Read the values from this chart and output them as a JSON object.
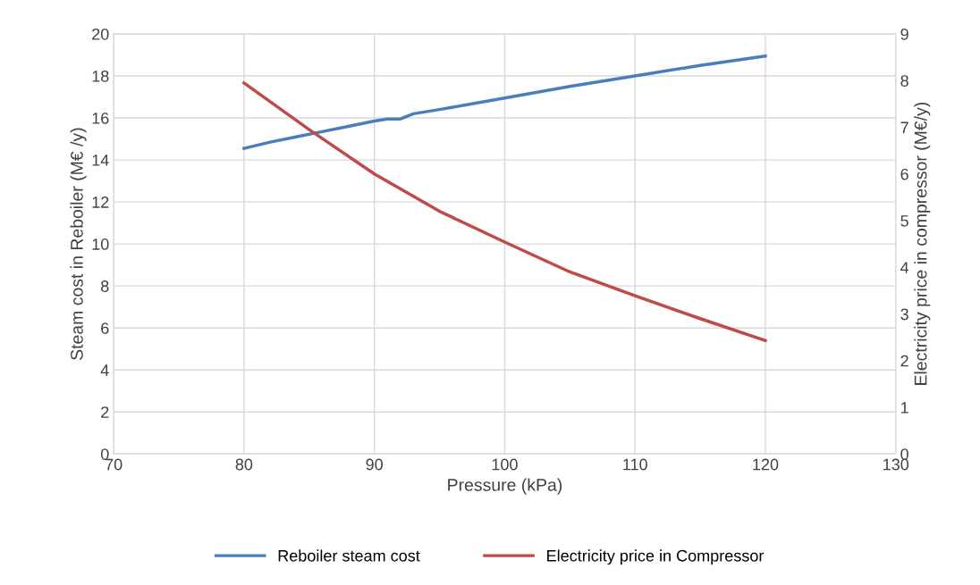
{
  "chart_data": {
    "type": "line",
    "xlabel": "Pressure (kPa)",
    "ylabel": "Steam cost in Reboiler (M€ /y)",
    "y2label": "Electricity price in compressor (M€/y)",
    "xlim": [
      70,
      130
    ],
    "xticks": [
      70,
      80,
      90,
      100,
      110,
      120,
      130
    ],
    "ylim": [
      0,
      20
    ],
    "yticks": [
      0,
      2,
      4,
      6,
      8,
      10,
      12,
      14,
      16,
      18,
      20
    ],
    "y2lim": [
      0,
      9
    ],
    "y2ticks": [
      0,
      1,
      2,
      3,
      4,
      5,
      6,
      7,
      8,
      9
    ],
    "grid": true,
    "legend": "bottom",
    "marker": "none",
    "line_style": "solid",
    "series": [
      {
        "name": "Reboiler steam cost",
        "color": "#4a7ebb",
        "x": [
          80,
          82,
          84,
          86,
          88,
          90,
          91,
          92,
          93,
          95,
          100,
          105,
          110,
          115,
          120
        ],
        "values": [
          14.55,
          14.85,
          15.1,
          15.35,
          15.6,
          15.85,
          15.95,
          15.95,
          16.2,
          16.4,
          16.95,
          17.5,
          18.0,
          18.5,
          18.95
        ]
      },
      {
        "name": "Electricity price in Compressor",
        "color": "#be4b48",
        "axis": "y2",
        "x": [
          80,
          85,
          90,
          95,
          100,
          105,
          110,
          115,
          120
        ],
        "values": [
          7.95,
          6.95,
          6.0,
          5.2,
          4.54,
          3.9,
          3.39,
          2.9,
          2.43
        ]
      }
    ]
  }
}
